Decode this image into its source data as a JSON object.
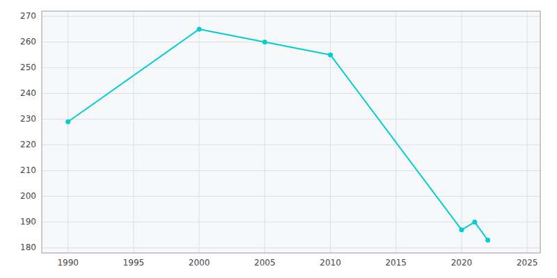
{
  "chart_data": {
    "type": "line",
    "x": [
      1990,
      2000,
      2005,
      2010,
      2020,
      2021,
      2022
    ],
    "values": [
      229,
      265,
      260,
      255,
      187,
      190,
      183
    ],
    "color": "#00CED1",
    "marker": "circle",
    "xlim": [
      1988,
      2026
    ],
    "ylim": [
      178,
      272
    ],
    "xticks": [
      1990,
      1995,
      2000,
      2005,
      2010,
      2015,
      2020,
      2025
    ],
    "yticks": [
      180,
      190,
      200,
      210,
      220,
      230,
      240,
      250,
      260,
      270
    ],
    "grid": true
  }
}
